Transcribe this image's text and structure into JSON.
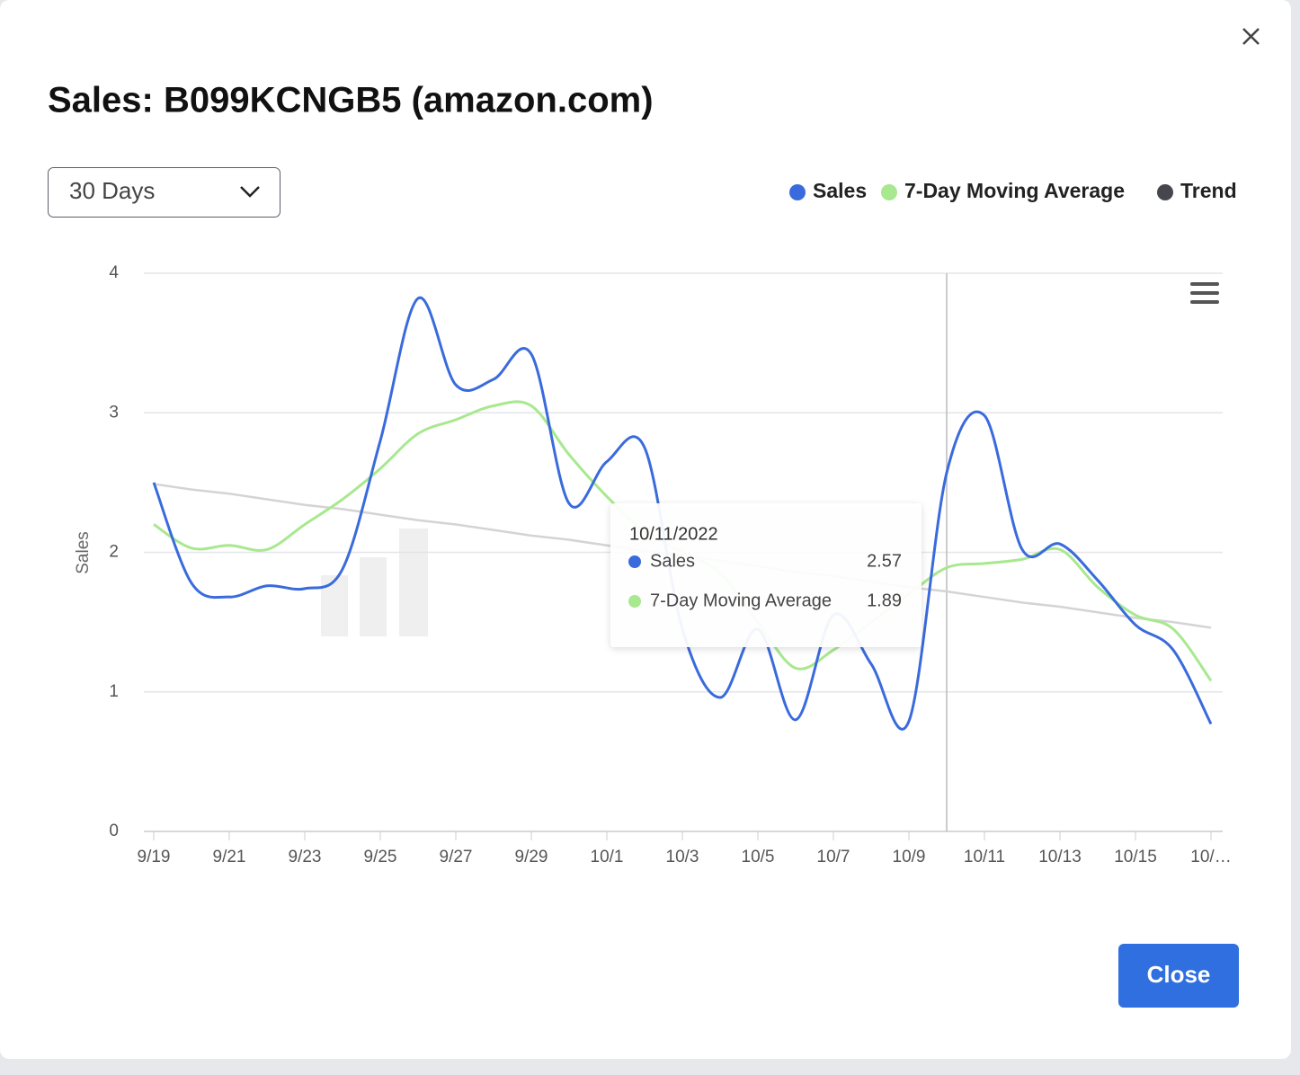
{
  "title": "Sales: B099KCNGB5 (amazon.com)",
  "range_select": "30 Days",
  "close_button": "Close",
  "chart_data": {
    "type": "line",
    "y_label": "Sales",
    "categories": [
      "9/19",
      null,
      "9/21",
      null,
      "9/23",
      null,
      "9/25",
      null,
      "9/27",
      null,
      "9/29",
      null,
      "10/1",
      null,
      "10/3",
      null,
      "10/5",
      null,
      "10/7",
      null,
      "10/9",
      null,
      "10/11",
      null,
      "10/13",
      null,
      "10/15",
      null,
      "10/…"
    ],
    "series": [
      {
        "name": "Sales",
        "color": "#3a6bdc",
        "marker_color": "#3a6bdc",
        "values": [
          2.5,
          1.78,
          1.68,
          1.76,
          1.74,
          1.88,
          2.8,
          3.82,
          3.2,
          3.24,
          3.42,
          2.35,
          2.65,
          2.75,
          1.45,
          0.96,
          1.45,
          0.8,
          1.55,
          1.2,
          0.79,
          2.57,
          2.98,
          2.02,
          2.06,
          1.8,
          1.48,
          1.3,
          0.77
        ]
      },
      {
        "name": "7-Day Moving Average",
        "color": "#a8e88e",
        "marker_color": "#a8e88e",
        "values": [
          2.2,
          2.03,
          2.05,
          2.02,
          2.2,
          2.38,
          2.6,
          2.85,
          2.95,
          3.05,
          3.05,
          2.7,
          2.4,
          2.15,
          2.0,
          1.85,
          1.5,
          1.17,
          1.3,
          1.5,
          1.7,
          1.89,
          1.92,
          1.95,
          2.02,
          1.75,
          1.55,
          1.45,
          1.08
        ]
      },
      {
        "name": "Trend",
        "color": "#d4d4d4",
        "marker_color": "#45474d",
        "straight": true,
        "values": [
          2.49,
          2.45,
          2.42,
          2.38,
          2.34,
          2.31,
          2.27,
          2.23,
          2.2,
          2.16,
          2.12,
          2.09,
          2.05,
          2.01,
          1.98,
          1.94,
          1.9,
          1.86,
          1.83,
          1.79,
          1.75,
          1.72,
          1.68,
          1.64,
          1.61,
          1.57,
          1.53,
          1.5,
          1.46
        ]
      }
    ],
    "ylim": [
      0,
      4
    ],
    "yticks": [
      0,
      1,
      2,
      3,
      4
    ],
    "grid": true,
    "legend": "top-right",
    "tooltip": {
      "date": "10/11/2022",
      "point": 21
    }
  }
}
